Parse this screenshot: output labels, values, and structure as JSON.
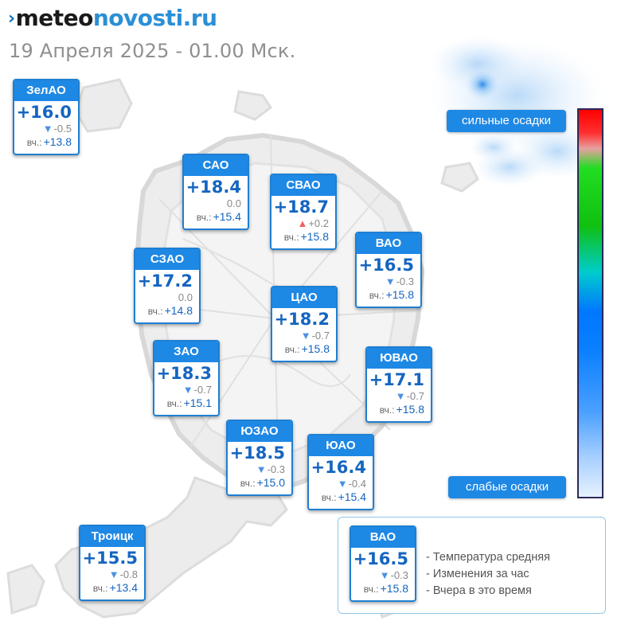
{
  "header": {
    "logo_mark": "›",
    "logo_part1": "meteo",
    "logo_part2": "novosti.ru",
    "subtitle": "19 Апреля 2025 - 01.00 Мск."
  },
  "yesterday_label": "вч.:",
  "districts": [
    {
      "name": "ЗелАО",
      "temp": "+16.0",
      "change": "-0.5",
      "trend": "down",
      "yesterday": "+13.8"
    },
    {
      "name": "САО",
      "temp": "+18.4",
      "change": "0.0",
      "trend": "none",
      "yesterday": "+15.4"
    },
    {
      "name": "СВАО",
      "temp": "+18.7",
      "change": "+0.2",
      "trend": "up",
      "yesterday": "+15.8"
    },
    {
      "name": "СЗАО",
      "temp": "+17.2",
      "change": "0.0",
      "trend": "none",
      "yesterday": "+14.8"
    },
    {
      "name": "ВАО",
      "temp": "+16.5",
      "change": "-0.3",
      "trend": "down",
      "yesterday": "+15.8"
    },
    {
      "name": "ЦАО",
      "temp": "+18.2",
      "change": "-0.7",
      "trend": "down",
      "yesterday": "+15.8"
    },
    {
      "name": "ЗАО",
      "temp": "+18.3",
      "change": "-0.7",
      "trend": "down",
      "yesterday": "+15.1"
    },
    {
      "name": "ЮВАО",
      "temp": "+17.1",
      "change": "-0.7",
      "trend": "down",
      "yesterday": "+15.8"
    },
    {
      "name": "ЮЗАО",
      "temp": "+18.5",
      "change": "-0.3",
      "trend": "down",
      "yesterday": "+15.0"
    },
    {
      "name": "ЮАО",
      "temp": "+16.4",
      "change": "-0.4",
      "trend": "down",
      "yesterday": "+15.4"
    },
    {
      "name": "Троицк",
      "temp": "+15.5",
      "change": "-0.8",
      "trend": "down",
      "yesterday": "+13.4"
    }
  ],
  "legend": {
    "example": {
      "name": "ВАО",
      "temp": "+16.5",
      "change": "-0.3",
      "trend": "down",
      "yesterday": "+15.8"
    },
    "lines": [
      "- Температура средняя",
      "- Изменения за час",
      "- Вчера в это время"
    ]
  },
  "precip_scale": {
    "heavy_label": "сильные осадки",
    "light_label": "слабые осадки"
  },
  "arrows": {
    "down": "▼",
    "up": "▲",
    "none": ""
  },
  "colors": {
    "accent": "#1e88e5",
    "temp_text": "#1565c0",
    "arrow_down": "#4a90e2",
    "arrow_up": "#f06060"
  }
}
